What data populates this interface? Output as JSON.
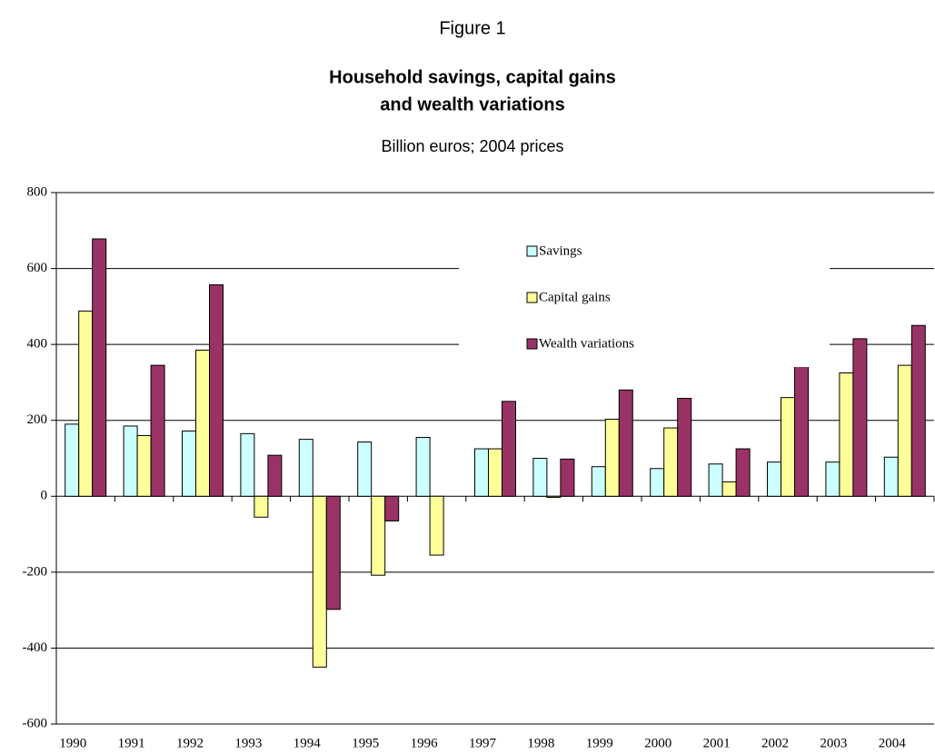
{
  "chart_data": {
    "type": "bar",
    "heading": "Figure 1",
    "title_lines": [
      "Household savings, capital gains",
      "and wealth variations"
    ],
    "subtitle": "Billion euros; 2004 prices",
    "categories": [
      "1990",
      "1991",
      "1992",
      "1993",
      "1994",
      "1995",
      "1996",
      "1997",
      "1998",
      "1999",
      "2000",
      "2001",
      "2002",
      "2003",
      "2004"
    ],
    "series": [
      {
        "name": "Savings",
        "color": "#ccffff",
        "values": [
          190,
          185,
          172,
          165,
          150,
          143,
          155,
          125,
          100,
          78,
          73,
          85,
          90,
          90,
          103
        ]
      },
      {
        "name": "Capital gains",
        "color": "#ffff99",
        "values": [
          488,
          160,
          385,
          -55,
          -450,
          -208,
          -155,
          125,
          -3,
          203,
          180,
          38,
          260,
          325,
          345
        ]
      },
      {
        "name": "Wealth variations",
        "color": "#993366",
        "values": [
          678,
          345,
          557,
          108,
          -298,
          -65,
          0,
          250,
          98,
          280,
          258,
          125,
          345,
          415,
          450
        ]
      }
    ],
    "ylim": [
      -600,
      800
    ],
    "yticks": [
      -600,
      -400,
      -200,
      0,
      200,
      400,
      600,
      800
    ],
    "grid": true,
    "legend": "upper right"
  }
}
